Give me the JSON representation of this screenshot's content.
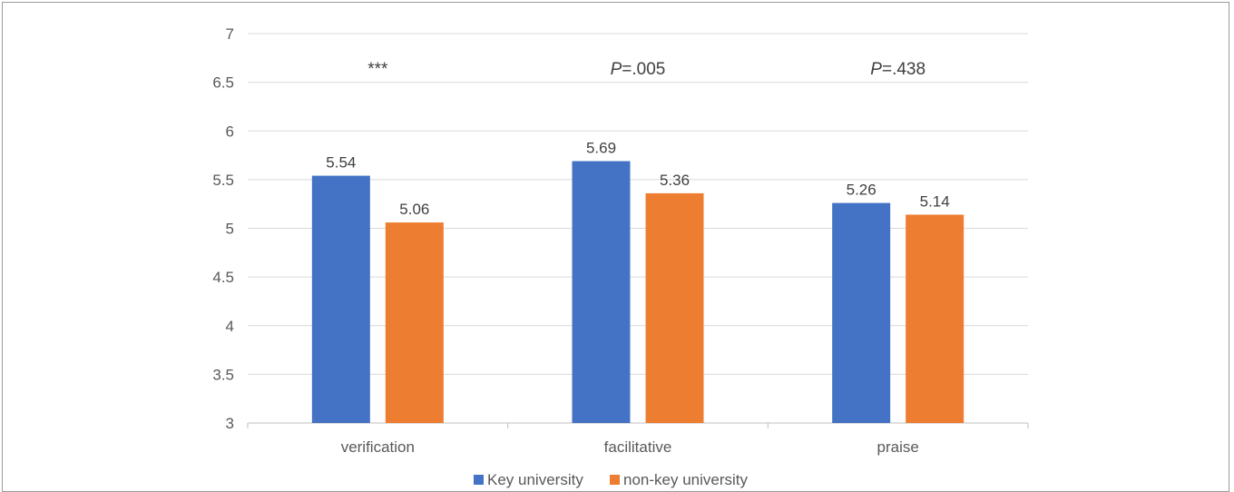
{
  "chart_data": {
    "type": "bar",
    "categories": [
      "verification",
      "facilitative",
      "praise"
    ],
    "series": [
      {
        "name": "Key university",
        "color": "#4472C4",
        "values": [
          5.54,
          5.69,
          5.26
        ],
        "labels": [
          "5.54",
          "5.69",
          "5.26"
        ]
      },
      {
        "name": "non-key university",
        "color": "#ED7D31",
        "values": [
          5.06,
          5.36,
          5.14
        ],
        "labels": [
          "5.06",
          "5.36",
          "5.14"
        ]
      }
    ],
    "ylim": [
      3,
      7
    ],
    "ytick_step": 0.5,
    "yticks": [
      "3",
      "3.5",
      "4",
      "4.5",
      "5",
      "5.5",
      "6",
      "6.5",
      "7"
    ],
    "annotations": [
      {
        "category": "verification",
        "text": "***",
        "italic_prefix": ""
      },
      {
        "category": "facilitative",
        "text": "=.005",
        "italic_prefix": "P"
      },
      {
        "category": "praise",
        "text": "=.438",
        "italic_prefix": "P"
      }
    ],
    "grid": true,
    "legend_position": "bottom",
    "title": "",
    "xlabel": "",
    "ylabel": ""
  }
}
